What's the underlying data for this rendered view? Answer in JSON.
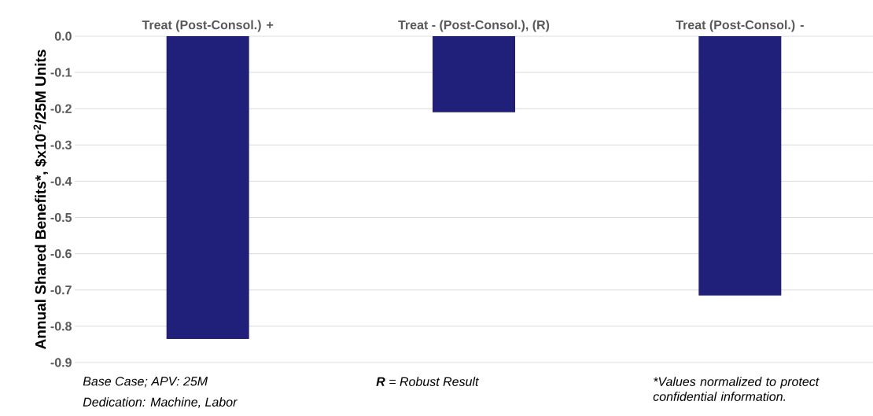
{
  "chart_data": {
    "type": "bar",
    "categories": [
      "Treat (Post-Consol.) +",
      "Treat - (Post-Consol.), (R)",
      "Treat (Post-Consol.) -"
    ],
    "values": [
      -0.835,
      -0.21,
      -0.715
    ],
    "color": "#20207a",
    "ylabel": "Annual Shared Benefits*, $x10$^{-2}$/25M Units",
    "ylim": [
      -0.9,
      0
    ],
    "yticks": [
      {
        "value": 0,
        "label": "0.0"
      },
      {
        "value": -0.1,
        "label": "-0.1"
      },
      {
        "value": -0.2,
        "label": "-0.2"
      },
      {
        "value": -0.3,
        "label": "-0.3"
      },
      {
        "value": -0.4,
        "label": "-0.4"
      },
      {
        "value": -0.5,
        "label": "-0.5"
      },
      {
        "value": -0.6,
        "label": "-0.6"
      },
      {
        "value": -0.7,
        "label": "-0.7"
      },
      {
        "value": -0.8,
        "label": "-0.8"
      },
      {
        "value": -0.9,
        "label": "-0.9"
      }
    ],
    "grid": "y",
    "annotations": [
      "Base Case; APV: 25M",
      "Dedication: Machine, Labor",
      "**R** = Robust Result",
      "*Values normalized to protect confidential information."
    ]
  }
}
